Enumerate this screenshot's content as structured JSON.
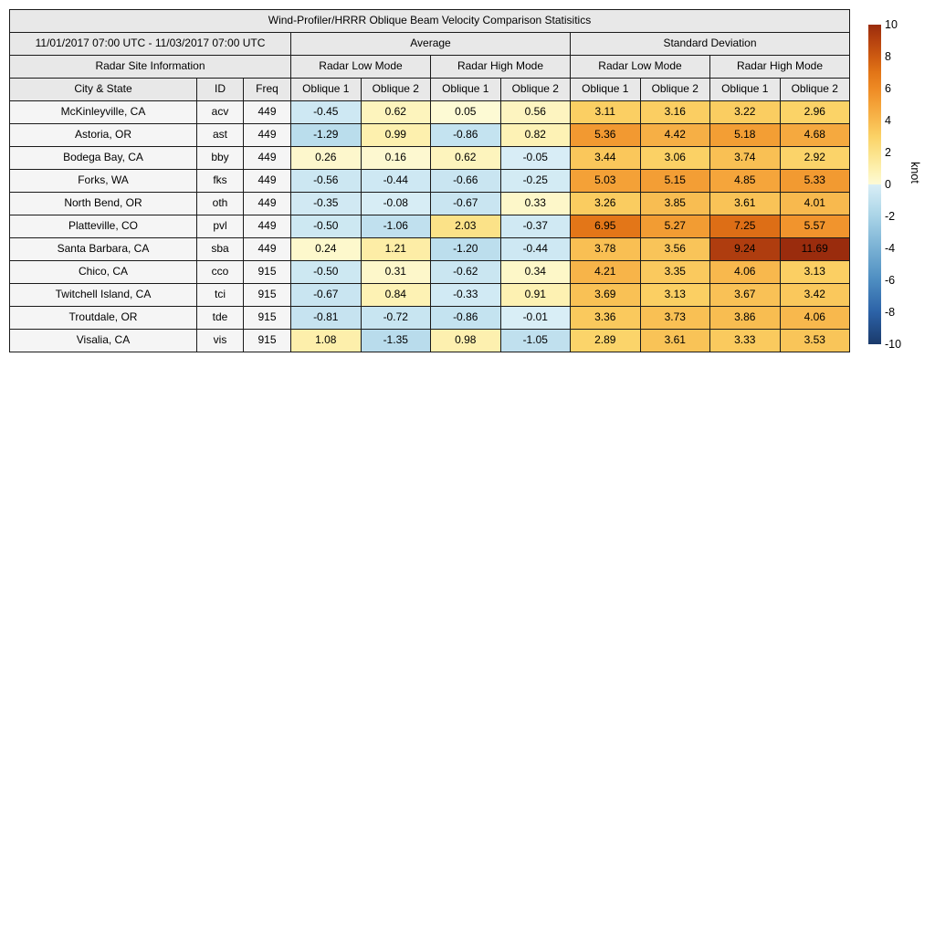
{
  "title": "Wind-Profiler/HRRR Oblique Beam Velocity Comparison Statisitics",
  "date_range": "11/01/2017 07:00 UTC - 11/03/2017 07:00 UTC",
  "header": {
    "site_info": "Radar Site Information",
    "average_label": "Average",
    "stddev_label": "Standard Deviation",
    "mode_low": "Radar Low Mode",
    "mode_high": "Radar High Mode",
    "col_city": "City & State",
    "col_id": "ID",
    "col_freq": "Freq",
    "oblique1_label": "Oblique 1",
    "oblique2_label": "Oblique 2"
  },
  "colorbar": {
    "unit": "knot",
    "min": -10,
    "max": 10,
    "ticks": [
      10,
      8,
      6,
      4,
      2,
      0,
      -2,
      -4,
      -6,
      -8,
      -10
    ]
  },
  "colors": {
    "header_bg": "#e8e8e8",
    "label_cell_bg": "#f5f5f5",
    "border": "#1a1a1a",
    "positive_anchors": [
      [
        0,
        "#fdfad6"
      ],
      [
        1,
        "#fdf0ae"
      ],
      [
        2,
        "#fbe289"
      ],
      [
        3,
        "#fbd266"
      ],
      [
        4,
        "#f8b94e"
      ],
      [
        5,
        "#f4a238"
      ],
      [
        6,
        "#ee8a24"
      ],
      [
        7,
        "#e27517"
      ],
      [
        8,
        "#cd5a11"
      ],
      [
        9,
        "#b6420f"
      ],
      [
        10,
        "#9a2c0d"
      ]
    ],
    "negative_anchors": [
      [
        0,
        "#d9eef6"
      ],
      [
        2,
        "#a9d4e7"
      ],
      [
        4,
        "#79b1d4"
      ],
      [
        6,
        "#4d8dc1"
      ],
      [
        8,
        "#2c62a7"
      ],
      [
        10,
        "#1a3a6b"
      ]
    ]
  },
  "chart_data": {
    "type": "heatmap",
    "title": "Wind-Profiler/HRRR Oblique Beam Velocity Comparison Statisitics",
    "subtitle": "11/01/2017 07:00 UTC - 11/03/2017 07:00 UTC",
    "unit": "knot",
    "colorbar_range": [
      -10,
      10
    ],
    "column_groups": [
      "Average Radar Low Mode",
      "Average Radar High Mode",
      "Standard Deviation Radar Low Mode",
      "Standard Deviation Radar High Mode"
    ],
    "value_columns": [
      "Average Low Oblique 1",
      "Average Low Oblique 2",
      "Average High Oblique 1",
      "Average High Oblique 2",
      "StdDev Low Oblique 1",
      "StdDev Low Oblique 2",
      "StdDev High Oblique 1",
      "StdDev High Oblique 2"
    ],
    "rows": [
      {
        "city": "McKinleyville, CA",
        "id": "acv",
        "freq": "449",
        "values": [
          -0.45,
          0.62,
          0.05,
          0.56,
          3.11,
          3.16,
          3.22,
          2.96
        ]
      },
      {
        "city": "Astoria, OR",
        "id": "ast",
        "freq": "449",
        "values": [
          -1.29,
          0.99,
          -0.86,
          0.82,
          5.36,
          4.42,
          5.18,
          4.68
        ]
      },
      {
        "city": "Bodega Bay, CA",
        "id": "bby",
        "freq": "449",
        "values": [
          0.26,
          0.16,
          0.62,
          -0.05,
          3.44,
          3.06,
          3.74,
          2.92
        ]
      },
      {
        "city": "Forks, WA",
        "id": "fks",
        "freq": "449",
        "values": [
          -0.56,
          -0.44,
          -0.66,
          -0.25,
          5.03,
          5.15,
          4.85,
          5.33
        ]
      },
      {
        "city": "North Bend, OR",
        "id": "oth",
        "freq": "449",
        "values": [
          -0.35,
          -0.08,
          -0.67,
          0.33,
          3.26,
          3.85,
          3.61,
          4.01
        ]
      },
      {
        "city": "Platteville, CO",
        "id": "pvl",
        "freq": "449",
        "values": [
          -0.5,
          -1.06,
          2.03,
          -0.37,
          6.95,
          5.27,
          7.25,
          5.57
        ]
      },
      {
        "city": "Santa Barbara, CA",
        "id": "sba",
        "freq": "449",
        "values": [
          0.24,
          1.21,
          -1.2,
          -0.44,
          3.78,
          3.56,
          9.24,
          11.69
        ]
      },
      {
        "city": "Chico, CA",
        "id": "cco",
        "freq": "915",
        "values": [
          -0.5,
          0.31,
          -0.62,
          0.34,
          4.21,
          3.35,
          4.06,
          3.13
        ]
      },
      {
        "city": "Twitchell Island, CA",
        "id": "tci",
        "freq": "915",
        "values": [
          -0.67,
          0.84,
          -0.33,
          0.91,
          3.69,
          3.13,
          3.67,
          3.42
        ]
      },
      {
        "city": "Troutdale, OR",
        "id": "tde",
        "freq": "915",
        "values": [
          -0.81,
          -0.72,
          -0.86,
          -0.01,
          3.36,
          3.73,
          3.86,
          4.06
        ]
      },
      {
        "city": "Visalia, CA",
        "id": "vis",
        "freq": "915",
        "values": [
          1.08,
          -1.35,
          0.98,
          -1.05,
          2.89,
          3.61,
          3.33,
          3.53
        ]
      }
    ]
  }
}
